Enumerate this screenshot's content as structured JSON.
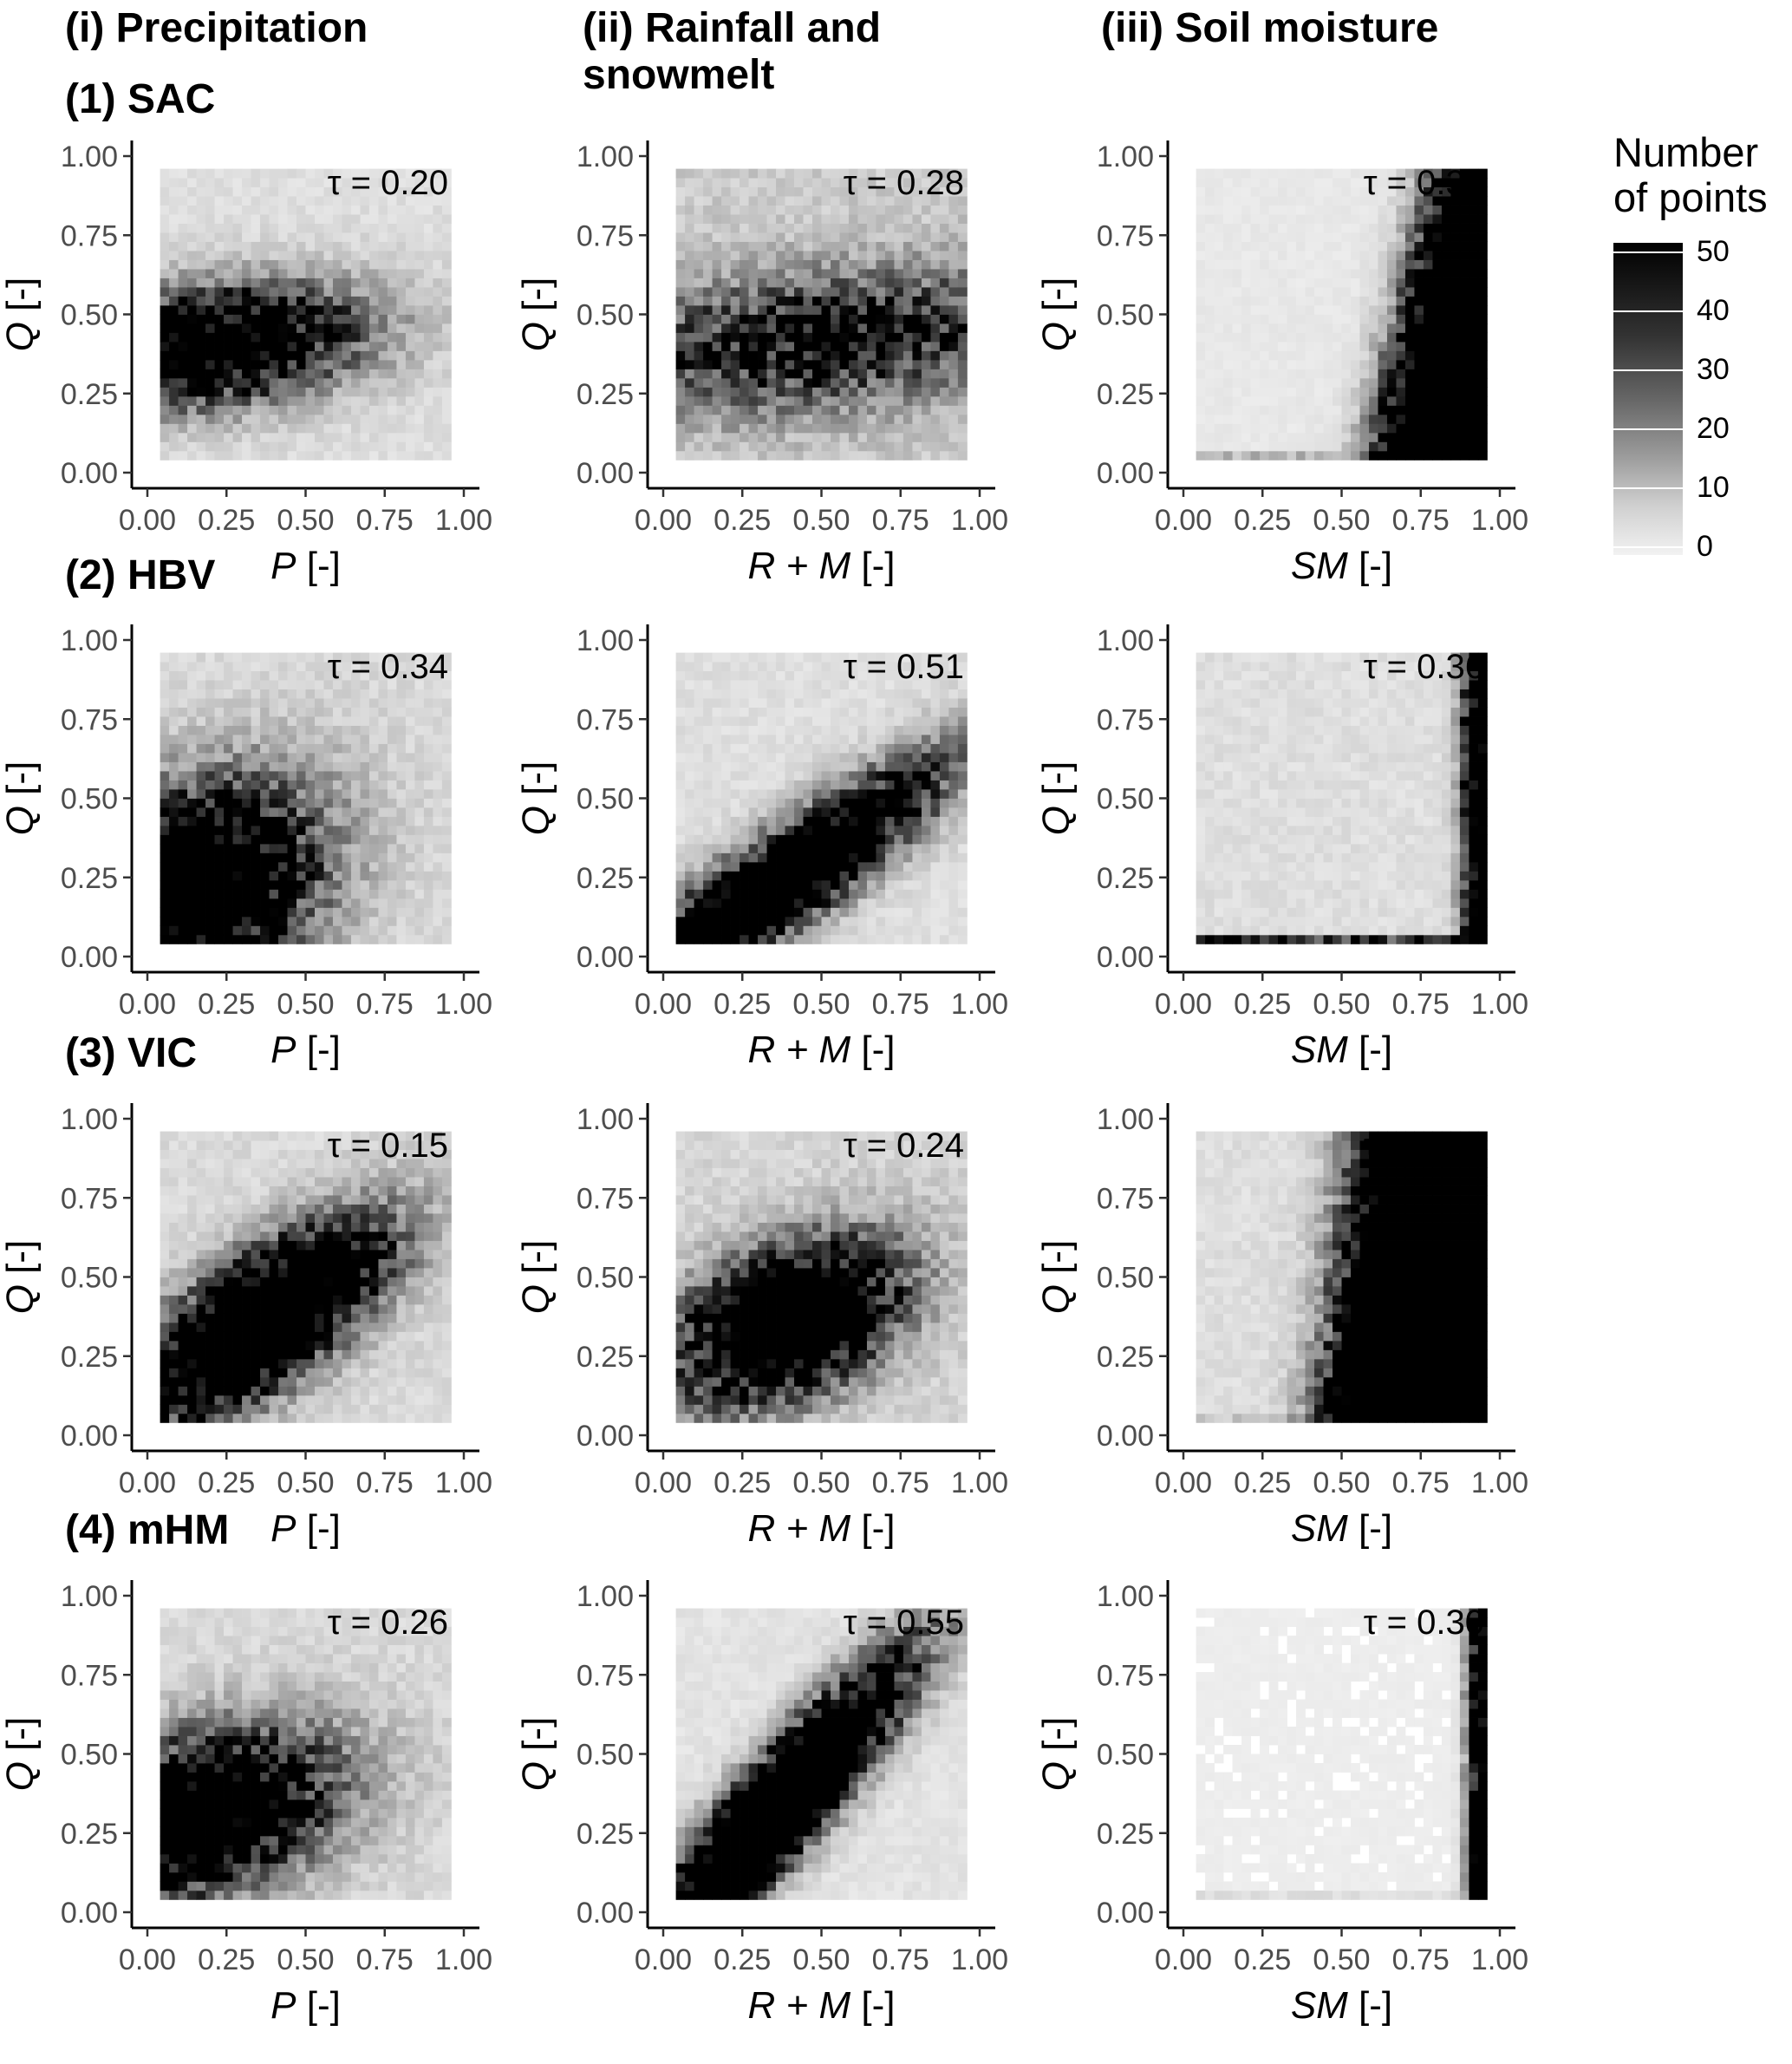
{
  "column_titles": [
    "(i) Precipitation",
    "(ii) Rainfall and\nsnowmelt",
    "(iii) Soil moisture"
  ],
  "row_titles": [
    "(1) SAC",
    "(2) HBV",
    "(3) VIC",
    "(4) mHM"
  ],
  "legend": {
    "title": "Number\nof points",
    "tick_labels": [
      "50",
      "40",
      "30",
      "20",
      "10",
      "0"
    ],
    "min": 0,
    "max": 50,
    "colors": {
      "low": "#f2f2f2",
      "high": "#000000"
    }
  },
  "chart_data": [
    {
      "type": "heatmap",
      "row": 0,
      "col": 0,
      "model": "SAC",
      "xlabel_main": "P",
      "xlabel_unit": " [-]",
      "ylabel_main": "Q",
      "ylabel_unit": " [-]",
      "tau_label": "τ = 0.20",
      "xlim": [
        0,
        1
      ],
      "ylim": [
        0,
        1
      ],
      "x_ticks": [
        "0.00",
        "0.25",
        "0.50",
        "0.75",
        "1.00"
      ],
      "y_ticks": [
        "0.00",
        "0.25",
        "0.50",
        "0.75",
        "1.00"
      ],
      "pattern": "blob",
      "params": {
        "cx": 0.2,
        "cy": 0.4,
        "sx": 0.32,
        "sy": 0.12,
        "rot": 0.12,
        "peak": 80,
        "bg": 4
      }
    },
    {
      "type": "heatmap",
      "row": 0,
      "col": 1,
      "model": "SAC",
      "xlabel_main": "R + M",
      "xlabel_unit": " [-]",
      "ylabel_main": "Q",
      "ylabel_unit": " [-]",
      "tau_label": "τ = 0.28",
      "xlim": [
        0,
        1
      ],
      "ylim": [
        0,
        1
      ],
      "x_ticks": [
        "0.00",
        "0.25",
        "0.50",
        "0.75",
        "1.00"
      ],
      "y_ticks": [
        "0.00",
        "0.25",
        "0.50",
        "0.75",
        "1.00"
      ],
      "pattern": "blob",
      "params": {
        "cx": 0.5,
        "cy": 0.42,
        "sx": 0.48,
        "sy": 0.14,
        "rot": 0.1,
        "peak": 45,
        "bg": 8
      }
    },
    {
      "type": "heatmap",
      "row": 0,
      "col": 2,
      "model": "SAC",
      "xlabel_main": "SM",
      "xlabel_unit": " [-]",
      "ylabel_main": "Q",
      "ylabel_unit": " [-]",
      "tau_label": "τ = 0.30",
      "xlim": [
        0,
        1
      ],
      "ylim": [
        0,
        1
      ],
      "x_ticks": [
        "0.00",
        "0.25",
        "0.50",
        "0.75",
        "1.00"
      ],
      "y_ticks": [
        "0.00",
        "0.25",
        "0.50",
        "0.75",
        "1.00"
      ],
      "pattern": "corner",
      "params": {
        "edge": 0.82,
        "steep": 0.9,
        "width": 0.13,
        "peak": 95,
        "bg": 2,
        "floor": 10
      }
    },
    {
      "type": "heatmap",
      "row": 1,
      "col": 0,
      "model": "HBV",
      "xlabel_main": "P",
      "xlabel_unit": " [-]",
      "ylabel_main": "Q",
      "ylabel_unit": " [-]",
      "tau_label": "τ = 0.34",
      "xlim": [
        0,
        1
      ],
      "ylim": [
        0,
        1
      ],
      "x_ticks": [
        "0.00",
        "0.25",
        "0.50",
        "0.75",
        "1.00"
      ],
      "y_ticks": [
        "0.00",
        "0.25",
        "0.50",
        "0.75",
        "1.00"
      ],
      "pattern": "blob",
      "params": {
        "cx": 0.15,
        "cy": 0.2,
        "sx": 0.28,
        "sy": 0.2,
        "rot": 0.6,
        "peak": 90,
        "bg": 5
      }
    },
    {
      "type": "heatmap",
      "row": 1,
      "col": 1,
      "model": "HBV",
      "xlabel_main": "R + M",
      "xlabel_unit": " [-]",
      "ylabel_main": "Q",
      "ylabel_unit": " [-]",
      "tau_label": "τ = 0.51",
      "xlim": [
        0,
        1
      ],
      "ylim": [
        0,
        1
      ],
      "x_ticks": [
        "0.00",
        "0.25",
        "0.50",
        "0.75",
        "1.00"
      ],
      "y_ticks": [
        "0.00",
        "0.25",
        "0.50",
        "0.75",
        "1.00"
      ],
      "pattern": "blob",
      "params": {
        "cx": 0.35,
        "cy": 0.22,
        "sx": 0.42,
        "sy": 0.09,
        "rot": 0.62,
        "peak": 100,
        "bg": 4
      }
    },
    {
      "type": "heatmap",
      "row": 1,
      "col": 2,
      "model": "HBV",
      "xlabel_main": "SM",
      "xlabel_unit": " [-]",
      "ylabel_main": "Q",
      "ylabel_unit": " [-]",
      "tau_label": "τ = 0.36",
      "xlim": [
        0,
        1
      ],
      "ylim": [
        0,
        1
      ],
      "x_ticks": [
        "0.00",
        "0.25",
        "0.50",
        "0.75",
        "1.00"
      ],
      "y_ticks": [
        "0.00",
        "0.25",
        "0.50",
        "0.75",
        "1.00"
      ],
      "pattern": "corner",
      "params": {
        "edge": 0.93,
        "steep": 0.0,
        "width": 0.05,
        "peak": 70,
        "bg": 4,
        "floor": 35
      }
    },
    {
      "type": "heatmap",
      "row": 2,
      "col": 0,
      "model": "VIC",
      "xlabel_main": "P",
      "xlabel_unit": " [-]",
      "ylabel_main": "Q",
      "ylabel_unit": " [-]",
      "tau_label": "τ = 0.15",
      "xlim": [
        0,
        1
      ],
      "ylim": [
        0,
        1
      ],
      "x_ticks": [
        "0.00",
        "0.25",
        "0.50",
        "0.75",
        "1.00"
      ],
      "y_ticks": [
        "0.00",
        "0.25",
        "0.50",
        "0.75",
        "1.00"
      ],
      "pattern": "blob",
      "params": {
        "cx": 0.36,
        "cy": 0.36,
        "sx": 0.3,
        "sy": 0.12,
        "rot": 0.62,
        "peak": 110,
        "bg": 5
      }
    },
    {
      "type": "heatmap",
      "row": 2,
      "col": 1,
      "model": "VIC",
      "xlabel_main": "R + M",
      "xlabel_unit": " [-]",
      "ylabel_main": "Q",
      "ylabel_unit": " [-]",
      "tau_label": "τ = 0.24",
      "xlim": [
        0,
        1
      ],
      "ylim": [
        0,
        1
      ],
      "x_ticks": [
        "0.00",
        "0.25",
        "0.50",
        "0.75",
        "1.00"
      ],
      "y_ticks": [
        "0.00",
        "0.25",
        "0.50",
        "0.75",
        "1.00"
      ],
      "pattern": "blob",
      "params": {
        "cx": 0.4,
        "cy": 0.36,
        "sx": 0.24,
        "sy": 0.14,
        "rot": 0.45,
        "peak": 100,
        "bg": 6
      }
    },
    {
      "type": "heatmap",
      "row": 2,
      "col": 2,
      "model": "VIC",
      "xlabel_main": "SM",
      "xlabel_unit": " [-]",
      "ylabel_main": "Q",
      "ylabel_unit": " [-]",
      "tau_label": "τ = 0.20",
      "xlim": [
        0,
        1
      ],
      "ylim": [
        0,
        1
      ],
      "x_ticks": [
        "0.00",
        "0.25",
        "0.50",
        "0.75",
        "1.00"
      ],
      "y_ticks": [
        "0.00",
        "0.25",
        "0.50",
        "0.75",
        "1.00"
      ],
      "pattern": "corner",
      "params": {
        "edge": 0.66,
        "steep": 0.5,
        "width": 0.16,
        "peak": 110,
        "bg": 4,
        "floor": 5
      }
    },
    {
      "type": "heatmap",
      "row": 3,
      "col": 0,
      "model": "mHM",
      "xlabel_main": "P",
      "xlabel_unit": " [-]",
      "ylabel_main": "Q",
      "ylabel_unit": " [-]",
      "tau_label": "τ = 0.26",
      "xlim": [
        0,
        1
      ],
      "ylim": [
        0,
        1
      ],
      "x_ticks": [
        "0.00",
        "0.25",
        "0.50",
        "0.75",
        "1.00"
      ],
      "y_ticks": [
        "0.00",
        "0.25",
        "0.50",
        "0.75",
        "1.00"
      ],
      "pattern": "blob",
      "params": {
        "cx": 0.14,
        "cy": 0.3,
        "sx": 0.3,
        "sy": 0.16,
        "rot": 0.3,
        "peak": 90,
        "bg": 5
      }
    },
    {
      "type": "heatmap",
      "row": 3,
      "col": 1,
      "model": "mHM",
      "xlabel_main": "R + M",
      "xlabel_unit": " [-]",
      "ylabel_main": "Q",
      "ylabel_unit": " [-]",
      "tau_label": "τ = 0.55",
      "xlim": [
        0,
        1
      ],
      "ylim": [
        0,
        1
      ],
      "x_ticks": [
        "0.00",
        "0.25",
        "0.50",
        "0.75",
        "1.00"
      ],
      "y_ticks": [
        "0.00",
        "0.25",
        "0.50",
        "0.75",
        "1.00"
      ],
      "pattern": "blob",
      "params": {
        "cx": 0.38,
        "cy": 0.35,
        "sx": 0.4,
        "sy": 0.085,
        "rot": 0.86,
        "peak": 120,
        "bg": 3
      }
    },
    {
      "type": "heatmap",
      "row": 3,
      "col": 2,
      "model": "mHM",
      "xlabel_main": "SM",
      "xlabel_unit": " [-]",
      "ylabel_main": "Q",
      "ylabel_unit": " [-]",
      "tau_label": "τ = 0.30",
      "xlim": [
        0,
        1
      ],
      "ylim": [
        0,
        1
      ],
      "x_ticks": [
        "0.00",
        "0.25",
        "0.50",
        "0.75",
        "1.00"
      ],
      "y_ticks": [
        "0.00",
        "0.25",
        "0.50",
        "0.75",
        "1.00"
      ],
      "pattern": "corner",
      "params": {
        "edge": 0.94,
        "steep": 0.0,
        "width": 0.04,
        "peak": 80,
        "bg": 1,
        "floor": 3
      }
    }
  ]
}
